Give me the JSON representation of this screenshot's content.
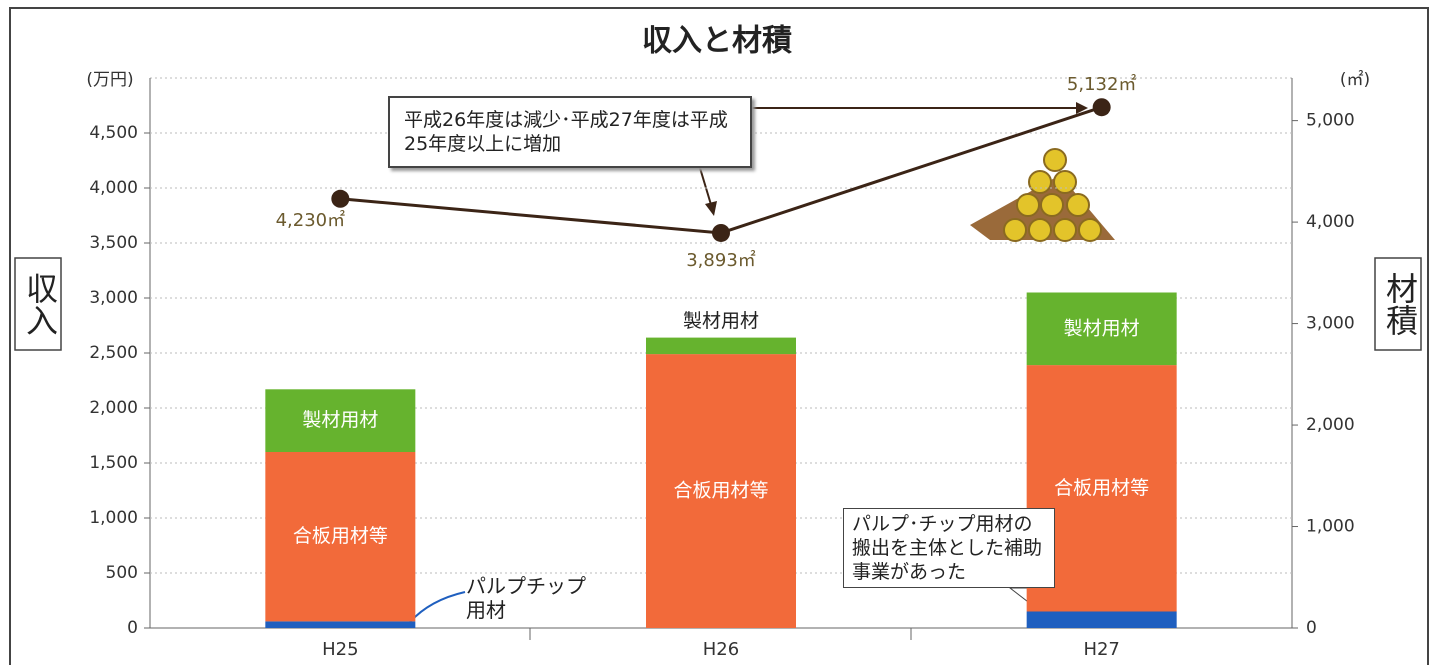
{
  "chart_data": {
    "type": "bar",
    "title": "収入と材積",
    "stacked": true,
    "grid": true,
    "categories": [
      "H25",
      "H26",
      "H27"
    ],
    "y_label": "収入",
    "y_unit": "(万円)",
    "y2_label": "材積",
    "y2_unit": "(㎡)",
    "ylim": [
      0,
      5000
    ],
    "yticks": [
      0,
      500,
      {
        "value": 1000,
        "label": "1,000"
      },
      {
        "value": 1500,
        "label": "1,500"
      },
      {
        "value": 2000,
        "label": "2,000"
      },
      {
        "value": 2500,
        "label": "2,500"
      },
      {
        "value": 3000,
        "label": "3,000"
      },
      {
        "value": 3500,
        "label": "3,500"
      },
      {
        "value": 4000,
        "label": "4,000"
      },
      {
        "value": 4500,
        "label": "4,500"
      }
    ],
    "y2lim": [
      0,
      5420
    ],
    "y2ticks": [
      0,
      {
        "value": 1000,
        "label": "1,000"
      },
      {
        "value": 2000,
        "label": "2,000"
      },
      {
        "value": 3000,
        "label": "3,000"
      },
      {
        "value": 4000,
        "label": "4,000"
      },
      {
        "value": 5000,
        "label": "5,000"
      }
    ],
    "series": [
      {
        "name": "パルプチップ用材",
        "color": "#1f5fbf",
        "values": [
          60,
          0,
          150
        ]
      },
      {
        "name": "合板用材等",
        "color": "#f26a3a",
        "values": [
          1540,
          2490,
          2240
        ]
      },
      {
        "name": "製材用材",
        "color": "#66b32e",
        "values": [
          570,
          150,
          660
        ]
      },
      {
        "type": "line",
        "axis": "y2",
        "color": "#3b2416",
        "values": [
          4230,
          3893,
          5132
        ],
        "value_labels": [
          "4,230㎡",
          "3,893㎡",
          "5,132㎡"
        ]
      }
    ],
    "annotations": [
      "平成26年度は減少･平成27年度は平成25年度以上に増加",
      "パルプ･チップ用材の搬出を主体とした補助事業があった"
    ]
  }
}
